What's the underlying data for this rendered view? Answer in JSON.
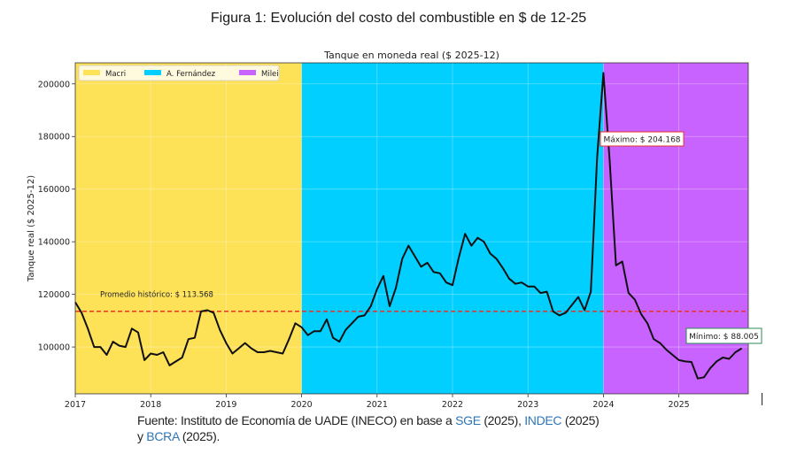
{
  "figure": {
    "title": "Figura 1: Evolución del costo del combustible en $ de 12-25"
  },
  "source": {
    "prefix": "Fuente: Instituto de Economía de UADE (INECO) en base a ",
    "link1": "SGE",
    "year1": " (2025), ",
    "link2": "INDEC",
    "year2": " (2025)",
    "line2_prefix": "y ",
    "link3": "BCRA",
    "year3": " (2025)."
  },
  "colors": {
    "macri": "#fde156",
    "fernandez": "#00cfff",
    "milei": "#c963ff",
    "line": "#111111",
    "average": "#e8322a",
    "max_box_border": "#e8322a",
    "min_box_border": "#2e8b57",
    "link": "#2e75b6"
  },
  "chart_data": {
    "type": "line",
    "title": "Tanque en moneda real ($ 2025-12)",
    "xlabel": "",
    "ylabel": "Tanque real ($ 2025-12)",
    "x_start": "2017-01",
    "frequency": "monthly",
    "xlim": [
      2017.0,
      2025.92
    ],
    "ylim": [
      82200,
      208000
    ],
    "xticks": [
      "2017",
      "2018",
      "2019",
      "2020",
      "2021",
      "2022",
      "2023",
      "2024",
      "2025"
    ],
    "yticks": [
      100000,
      120000,
      140000,
      160000,
      180000,
      200000
    ],
    "grid": true,
    "legend_position": "upper left",
    "legend": [
      "Macri",
      "A. Fernández",
      "Milei"
    ],
    "periods": [
      {
        "name": "Macri",
        "start": 2017.0,
        "end": 2020.0,
        "color": "#fde156"
      },
      {
        "name": "A. Fernández",
        "start": 2020.0,
        "end": 2024.0,
        "color": "#00cfff"
      },
      {
        "name": "Milei",
        "start": 2024.0,
        "end": 2025.92,
        "color": "#c963ff"
      }
    ],
    "series": [
      {
        "name": "Tanque real",
        "values": [
          117000,
          113000,
          107000,
          100000,
          100000,
          97000,
          102000,
          100500,
          100000,
          107000,
          105500,
          95000,
          97500,
          97000,
          98000,
          93000,
          94500,
          96000,
          103000,
          103500,
          113500,
          114000,
          113000,
          106500,
          101500,
          97500,
          99500,
          101500,
          99500,
          98000,
          98000,
          98500,
          98000,
          97500,
          103000,
          109000,
          107500,
          104500,
          106000,
          106000,
          110500,
          103500,
          102000,
          106500,
          109000,
          111500,
          112000,
          115500,
          122000,
          127000,
          115500,
          122500,
          133500,
          138500,
          134500,
          130500,
          132000,
          128500,
          128000,
          124500,
          123500,
          134000,
          143000,
          138500,
          141500,
          140000,
          135500,
          133500,
          130000,
          126000,
          124000,
          124500,
          123000,
          123000,
          120500,
          121000,
          113500,
          112000,
          113000,
          116000,
          119000,
          114000,
          121000,
          172000,
          204168,
          170700,
          131000,
          132500,
          120500,
          118000,
          112500,
          109000,
          103000,
          101500,
          99000,
          97000,
          95000,
          94500,
          94300,
          88005,
          88500,
          92000,
          94500,
          96000,
          95500,
          98000,
          99500
        ]
      }
    ],
    "reference_line": {
      "label": "Promedio histórico: $ 113.568",
      "value": 113568,
      "style": "dashed"
    },
    "annotations": [
      {
        "label": "Máximo: $ 204.168",
        "value": 204168,
        "date": "2024-01"
      },
      {
        "label": "Mínimo: $ 88.005",
        "value": 88005,
        "date": "2025-04"
      }
    ]
  }
}
